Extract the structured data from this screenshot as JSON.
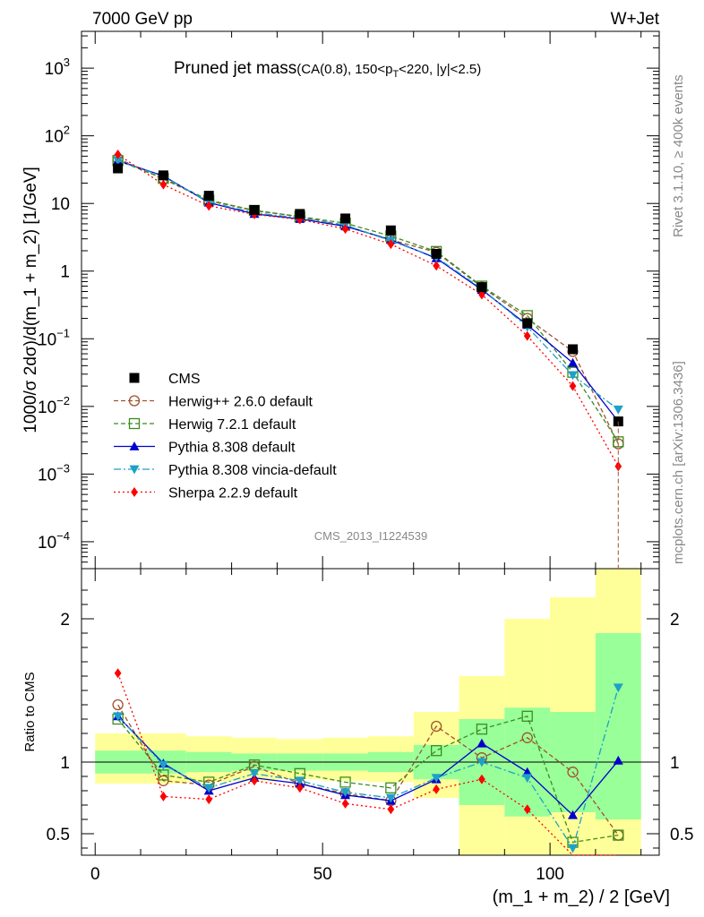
{
  "header": {
    "left": "7000 GeV pp",
    "right": "W+Jet"
  },
  "chart_data": {
    "type": "line",
    "title": "Pruned jet mass",
    "title_detail": "(CA(0.8), 150<p",
    "title_detail_sub": "T",
    "title_detail_tail": "<220, |y|<2.5)",
    "xlabel": "(m_1 + m_2) / 2 [GeV]",
    "ylabel": "1000/σ 2dσ)/d(m_1 + m_2) [1/GeV]",
    "ratio_ylabel": "Ratio to CMS",
    "analysis_tag": "CMS_2013_I1224539",
    "side_right_top": "Rivet 3.1.10, ≥ 400k events",
    "side_right_bottom": "mcplots.cern.ch [arXiv:1306.3436]",
    "xlim": [
      -3,
      124
    ],
    "ylim": [
      4e-05,
      3500
    ],
    "yscale": "log",
    "ratio_ylim": [
      0.35,
      2.35
    ],
    "x_ticks": [
      0,
      50,
      100
    ],
    "y_ticks": [
      {
        "v": 0.0001,
        "m": "10",
        "e": "−4"
      },
      {
        "v": 0.001,
        "m": "10",
        "e": "−3"
      },
      {
        "v": 0.01,
        "m": "10",
        "e": "−2"
      },
      {
        "v": 0.1,
        "m": "10",
        "e": "−1"
      },
      {
        "v": 1,
        "m": "1",
        "e": ""
      },
      {
        "v": 10,
        "m": "10",
        "e": ""
      },
      {
        "v": 100,
        "m": "10",
        "e": "2"
      },
      {
        "v": 1000,
        "m": "10",
        "e": "3"
      }
    ],
    "ratio_ticks": [
      {
        "v": 0.5,
        "label": "0.5"
      },
      {
        "v": 1,
        "label": "1"
      },
      {
        "v": 2,
        "label": "2"
      }
    ],
    "x": [
      5,
      15,
      25,
      35,
      45,
      55,
      65,
      75,
      85,
      95,
      105,
      115
    ],
    "bins": [
      0,
      10,
      20,
      30,
      40,
      50,
      60,
      70,
      80,
      90,
      100,
      110,
      120
    ],
    "data": {
      "name": "CMS",
      "values": [
        33,
        26,
        13,
        8,
        7,
        6,
        4,
        1.8,
        0.58,
        0.17,
        0.07,
        0.006
      ]
    },
    "band_inner": [
      [
        0.92,
        1.08
      ],
      [
        0.92,
        1.08
      ],
      [
        0.93,
        1.07
      ],
      [
        0.94,
        1.06
      ],
      [
        0.94,
        1.06
      ],
      [
        0.94,
        1.06
      ],
      [
        0.93,
        1.07
      ],
      [
        0.88,
        1.12
      ],
      [
        0.7,
        1.3
      ],
      [
        0.62,
        1.38
      ],
      [
        0.65,
        1.35
      ],
      [
        0.6,
        1.9
      ]
    ],
    "band_outer": [
      [
        0.85,
        1.2
      ],
      [
        0.85,
        1.2
      ],
      [
        0.86,
        1.18
      ],
      [
        0.87,
        1.17
      ],
      [
        0.88,
        1.16
      ],
      [
        0.87,
        1.17
      ],
      [
        0.86,
        1.18
      ],
      [
        0.75,
        1.35
      ],
      [
        0.35,
        1.6
      ],
      [
        0.35,
        2.0
      ],
      [
        0.35,
        2.15
      ],
      [
        0.35,
        2.35
      ]
    ],
    "series": [
      {
        "name": "Herwig++ 2.6.0 default",
        "color": "#a0522d",
        "dash": "5,3",
        "marker": "circle-open",
        "values": [
          46,
          23,
          11,
          7.8,
          6.4,
          4.7,
          2.9,
          1.9,
          0.58,
          0.2,
          0.065,
          0.0028
        ],
        "ratio": [
          1.4,
          0.87,
          0.84,
          0.97,
          0.85,
          0.78,
          0.73,
          1.25,
          1.03,
          1.17,
          0.93,
          0.49
        ]
      },
      {
        "name": "Herwig 7.2.1 default",
        "color": "#3c8c1e",
        "dash": "5,3",
        "marker": "square-open",
        "values": [
          43,
          23.5,
          11.2,
          7.9,
          6.4,
          5.1,
          3.3,
          1.95,
          0.6,
          0.22,
          0.032,
          0.003
        ],
        "ratio": [
          1.3,
          0.91,
          0.86,
          0.98,
          0.92,
          0.86,
          0.82,
          1.08,
          1.23,
          1.32,
          0.44,
          0.49
        ]
      },
      {
        "name": "Pythia 8.308 default",
        "color": "#0000cc",
        "dash": "",
        "marker": "triangle-up",
        "values": [
          43,
          25.5,
          10.3,
          7,
          5.9,
          4.6,
          2.9,
          1.55,
          0.53,
          0.16,
          0.044,
          0.006
        ],
        "ratio": [
          1.32,
          0.99,
          0.8,
          0.89,
          0.85,
          0.77,
          0.73,
          0.88,
          1.13,
          0.93,
          0.63,
          1.01
        ]
      },
      {
        "name": "Pythia 8.308 vincia-default",
        "color": "#1ea0c8",
        "dash": "8,3,2,3",
        "marker": "triangle-down",
        "values": [
          43,
          25,
          10.5,
          7.3,
          6.1,
          4.8,
          2.8,
          1.6,
          0.55,
          0.15,
          0.029,
          0.009
        ],
        "ratio": [
          1.32,
          0.98,
          0.82,
          0.92,
          0.87,
          0.79,
          0.75,
          0.89,
          1.0,
          0.89,
          0.4,
          1.52
        ]
      },
      {
        "name": "Sherpa 2.2.9 default",
        "color": "#ff0000",
        "dash": "2,3",
        "marker": "diamond",
        "values": [
          53,
          19,
          9.2,
          6.9,
          5.8,
          4.2,
          2.5,
          1.2,
          0.45,
          0.11,
          0.02,
          0.0013
        ],
        "ratio": [
          1.62,
          0.76,
          0.74,
          0.87,
          0.82,
          0.71,
          0.67,
          0.81,
          0.88,
          0.67,
          0.3,
          0.22
        ]
      }
    ]
  }
}
